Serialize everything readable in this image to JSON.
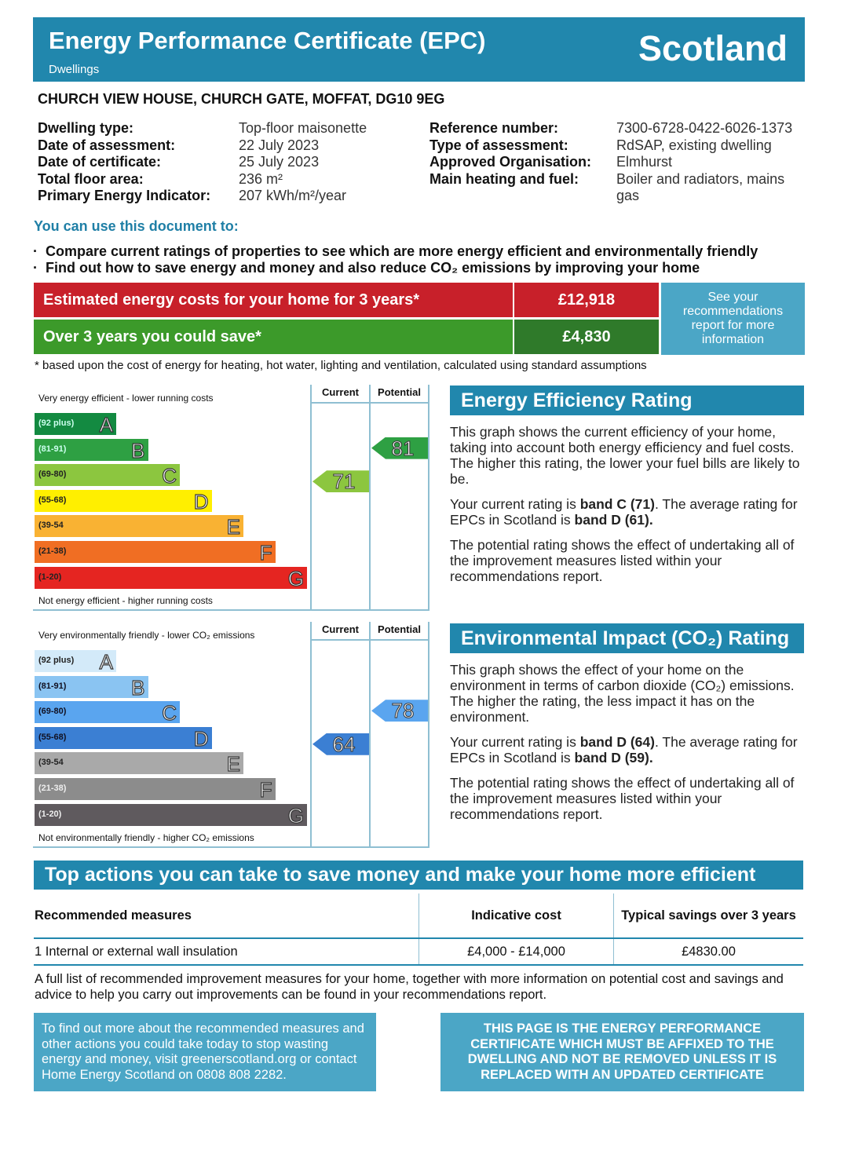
{
  "header": {
    "title": "Energy Performance Certificate (EPC)",
    "subtitle": "Dwellings",
    "region": "Scotland",
    "color": "#2187ad"
  },
  "address": "CHURCH VIEW HOUSE,  CHURCH GATE, MOFFAT, DG10 9EG",
  "details_left": [
    {
      "label": "Dwelling type:",
      "value": "Top-floor maisonette"
    },
    {
      "label": "Date of assessment:",
      "value": "22 July 2023"
    },
    {
      "label": "Date of certificate:",
      "value": "25 July 2023"
    },
    {
      "label": "Total floor area:",
      "value": "236 m²"
    },
    {
      "label": "Primary Energy Indicator:",
      "value": "207 kWh/m²/year"
    }
  ],
  "details_right": [
    {
      "label": "Reference number:",
      "value": "7300-6728-0422-6026-1373"
    },
    {
      "label": "Type of assessment:",
      "value": "RdSAP, existing dwelling"
    },
    {
      "label": "Approved Organisation:",
      "value": "Elmhurst"
    },
    {
      "label": "Main heating and fuel:",
      "value": "Boiler and radiators, mains gas"
    }
  ],
  "use_heading": "You can use this document to:",
  "uses": [
    "Compare current ratings of properties to see which are more energy efficient and environmentally friendly",
    "Find out how to save energy and money and also reduce CO₂ emissions by improving your home"
  ],
  "costs": {
    "estimated_label": "Estimated energy costs for your home for 3 years*",
    "estimated_value": "£12,918",
    "save_label": "Over 3 years you could save*",
    "save_value": "£4,830",
    "see_recs": "See your recommendations report for more information",
    "footnote": "* based upon the cost of energy for heating, hot water, lighting and ventilation, calculated using standard assumptions"
  },
  "energy_chart": {
    "top_caption": "Very energy efficient - lower running costs",
    "bottom_caption": "Not energy efficient - higher running costs",
    "current_label": "Current",
    "potential_label": "Potential",
    "current": 71,
    "potential": 81,
    "bands": [
      {
        "letter": "A",
        "range": "(92 plus)",
        "color": "#138a41",
        "text": "#cfe"
      },
      {
        "letter": "B",
        "range": "(81-91)",
        "color": "#2ea043",
        "text": "#cfe"
      },
      {
        "letter": "C",
        "range": "(69-80)",
        "color": "#8cc63f",
        "text": "#222"
      },
      {
        "letter": "D",
        "range": "(55-68)",
        "color": "#ffef00",
        "text": "#222"
      },
      {
        "letter": "E",
        "range": "(39-54",
        "color": "#f9b233",
        "text": "#222"
      },
      {
        "letter": "F",
        "range": "(21-38)",
        "color": "#f06e23",
        "text": "#222"
      },
      {
        "letter": "G",
        "range": "(1-20)",
        "color": "#e52521",
        "text": "#222"
      }
    ]
  },
  "env_chart": {
    "top_caption": "Very environmentally friendly - lower CO₂ emissions",
    "bottom_caption": "Not environmentally friendly - higher CO₂ emissions",
    "current_label": "Current",
    "potential_label": "Potential",
    "current": 64,
    "potential": 78,
    "bands": [
      {
        "letter": "A",
        "range": "(92 plus)",
        "color": "#d3eaf9",
        "text": "#222"
      },
      {
        "letter": "B",
        "range": "(81-91)",
        "color": "#8ac4f2",
        "text": "#112"
      },
      {
        "letter": "C",
        "range": "(69-80)",
        "color": "#5aa5ef",
        "text": "#112"
      },
      {
        "letter": "D",
        "range": "(55-68)",
        "color": "#3b7fd3",
        "text": "#112"
      },
      {
        "letter": "E",
        "range": "(39-54",
        "color": "#a9a9a9",
        "text": "#222"
      },
      {
        "letter": "F",
        "range": "(21-38)",
        "color": "#8c8c8c",
        "text": "#eee"
      },
      {
        "letter": "G",
        "range": "(1-20)",
        "color": "#5f5a5e",
        "text": "#eee"
      }
    ]
  },
  "energy_rating": {
    "title": "Energy Efficiency Rating",
    "p1": "This graph shows the current efficiency of your home, taking into account both energy efficiency and fuel costs. The higher this rating, the lower your fuel bills are likely to be.",
    "p2a": "Your current rating is ",
    "p2b": "band C (71)",
    "p2c": ". The average rating for EPCs in Scotland is ",
    "p2d": "band D (61).",
    "p3": "The potential rating shows the effect of undertaking all of the improvement measures listed within your recommendations report."
  },
  "env_rating": {
    "title": "Environmental Impact (CO₂) Rating",
    "p1": "This graph shows the effect of your home on the environment in terms of carbon dioxide (CO₂) emissions. The higher the rating, the less impact it has on the environment.",
    "p2a": "Your current rating is ",
    "p2b": "band D (64)",
    "p2c": ". The average rating for EPCs in Scotland is ",
    "p2d": "band D (59).",
    "p3": "The potential rating shows the effect of undertaking all of the improvement measures listed within your recommendations report."
  },
  "top_actions": {
    "title": "Top actions you can take to save money and make your home more efficient",
    "headers": [
      "Recommended measures",
      "Indicative cost",
      "Typical savings over 3 years"
    ],
    "rows": [
      [
        "1 Internal or external wall insulation",
        "£4,000 - £14,000",
        "£4830.00"
      ]
    ]
  },
  "full_list": "A full list of recommended improvement measures for your home, together with more information on potential cost and savings and advice to help you carry out improvements can be found in your recommendations report.",
  "find_out": "To find out more about the recommended measures and other actions you could take today to stop wasting energy and money, visit greenerscotland.org or contact Home Energy Scotland on 0808 808 2282.",
  "notice": "THIS PAGE IS THE ENERGY PERFORMANCE CERTIFICATE WHICH MUST BE AFFIXED TO THE DWELLING AND NOT BE REMOVED UNLESS IT IS REPLACED WITH AN UPDATED CERTIFICATE"
}
